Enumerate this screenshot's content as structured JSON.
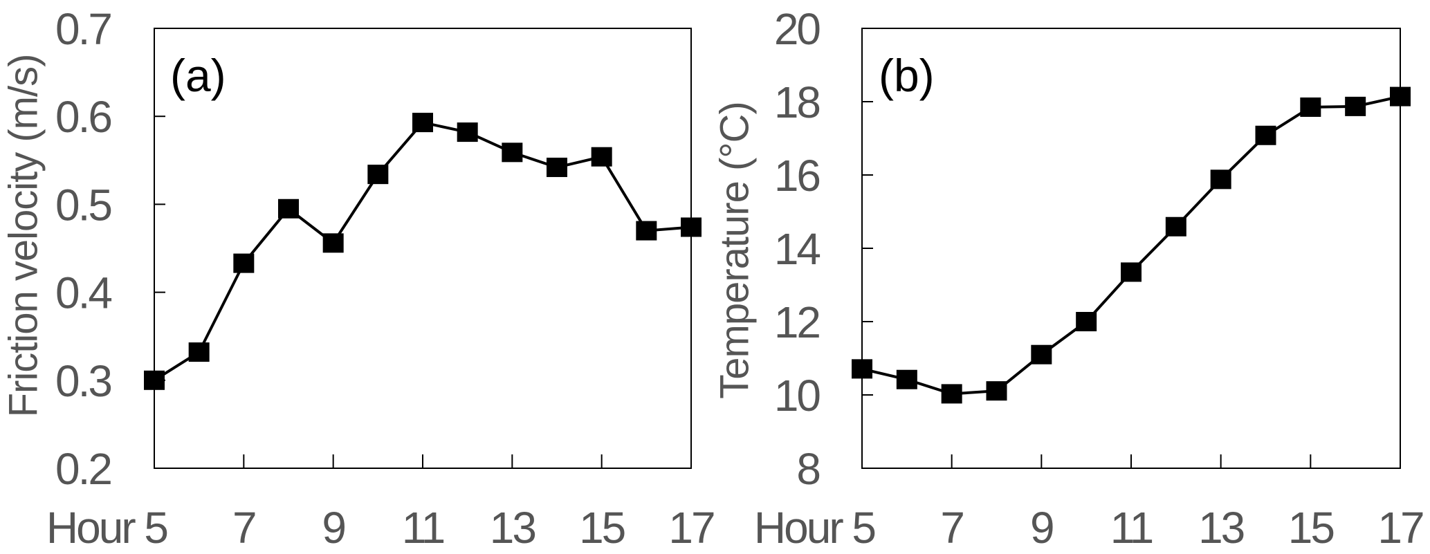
{
  "chart_data": [
    {
      "type": "line",
      "panel_label": "(a)",
      "xlabel": "Hour",
      "ylabel": "Friction velocity (m/s)",
      "x": [
        5,
        6,
        7,
        8,
        9,
        10,
        11,
        12,
        13,
        14,
        15,
        16,
        17
      ],
      "xticks": [
        5,
        7,
        9,
        11,
        13,
        15,
        17
      ],
      "xtick_labels": [
        "Hour 5",
        "7",
        "9",
        "11",
        "13",
        "15",
        "17"
      ],
      "xlim": [
        5,
        17
      ],
      "ylim": [
        0.2,
        0.7
      ],
      "yticks": [
        0.2,
        0.3,
        0.4,
        0.5,
        0.6,
        0.7
      ],
      "ytick_labels": [
        "0.2",
        "0.3",
        "0.4",
        "0.5",
        "0.6",
        "0.7"
      ],
      "series": [
        {
          "values": [
            0.3,
            0.332,
            0.433,
            0.495,
            0.456,
            0.534,
            0.593,
            0.582,
            0.559,
            0.542,
            0.554,
            0.47,
            0.474
          ],
          "marker": "square",
          "color": "#000000"
        }
      ],
      "grid": false
    },
    {
      "type": "line",
      "panel_label": "(b)",
      "xlabel": "Hour",
      "ylabel": "Temperature  (°C)",
      "x": [
        5,
        6,
        7,
        8,
        9,
        10,
        11,
        12,
        13,
        14,
        15,
        16,
        17
      ],
      "xticks": [
        5,
        7,
        9,
        11,
        13,
        15,
        17
      ],
      "xtick_labels": [
        "Hour 5",
        "7",
        "9",
        "11",
        "13",
        "15",
        "17"
      ],
      "xlim": [
        5,
        17
      ],
      "ylim": [
        8,
        20
      ],
      "yticks": [
        8,
        10,
        12,
        14,
        16,
        18,
        20
      ],
      "ytick_labels": [
        "8",
        "10",
        "12",
        "14",
        "16",
        "18",
        "20"
      ],
      "series": [
        {
          "values": [
            10.71,
            10.42,
            10.03,
            10.11,
            11.1,
            12.0,
            13.35,
            14.59,
            15.88,
            17.08,
            17.85,
            17.87,
            18.14
          ],
          "marker": "square",
          "color": "#000000"
        }
      ],
      "grid": false
    }
  ]
}
